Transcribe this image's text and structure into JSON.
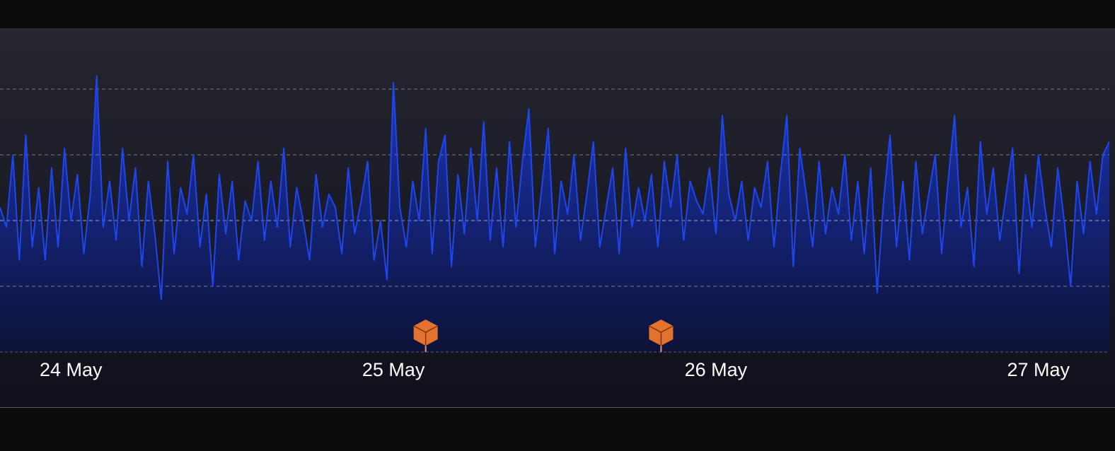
{
  "chart_data": {
    "type": "area",
    "x": [
      23.78,
      23.8,
      23.82,
      23.84,
      23.86,
      23.88,
      23.9,
      23.92,
      23.94,
      23.96,
      23.98,
      24,
      24.02,
      24.04,
      24.06,
      24.08,
      24.1,
      24.12,
      24.14,
      24.16,
      24.18,
      24.2,
      24.22,
      24.24,
      24.26,
      24.28,
      24.3,
      24.32,
      24.34,
      24.36,
      24.38,
      24.4,
      24.42,
      24.44,
      24.46,
      24.48,
      24.5,
      24.52,
      24.54,
      24.56,
      24.58,
      24.6,
      24.62,
      24.64,
      24.66,
      24.68,
      24.7,
      24.72,
      24.74,
      24.76,
      24.78,
      24.8,
      24.82,
      24.84,
      24.86,
      24.88,
      24.9,
      24.92,
      24.94,
      24.96,
      24.98,
      25,
      25.02,
      25.04,
      25.06,
      25.08,
      25.1,
      25.12,
      25.14,
      25.16,
      25.18,
      25.2,
      25.22,
      25.24,
      25.26,
      25.28,
      25.3,
      25.32,
      25.34,
      25.36,
      25.38,
      25.4,
      25.42,
      25.44,
      25.46,
      25.48,
      25.5,
      25.52,
      25.54,
      25.56,
      25.58,
      25.6,
      25.62,
      25.64,
      25.66,
      25.68,
      25.7,
      25.72,
      25.74,
      25.76,
      25.78,
      25.8,
      25.82,
      25.84,
      25.86,
      25.88,
      25.9,
      25.92,
      25.94,
      25.96,
      25.98,
      26,
      26.02,
      26.04,
      26.06,
      26.08,
      26.1,
      26.12,
      26.14,
      26.16,
      26.18,
      26.2,
      26.22,
      26.24,
      26.26,
      26.28,
      26.3,
      26.32,
      26.34,
      26.36,
      26.38,
      26.4,
      26.42,
      26.44,
      26.46,
      26.48,
      26.5,
      26.52,
      26.54,
      26.56,
      26.58,
      26.6,
      26.62,
      26.64,
      26.66,
      26.68,
      26.7,
      26.72,
      26.74,
      26.76,
      26.78,
      26.8,
      26.82,
      26.84,
      26.86,
      26.88,
      26.9,
      26.92,
      26.94,
      26.96,
      26.98,
      27,
      27.02,
      27.04,
      27.06,
      27.08,
      27.1,
      27.12,
      27.14,
      27.16,
      27.18,
      27.2,
      27.22
    ],
    "series": [
      {
        "color": "#1f45f0",
        "values": [
          2.2,
          1.9,
          3.0,
          1.4,
          3.3,
          1.6,
          2.5,
          1.4,
          2.8,
          1.6,
          3.1,
          2.0,
          2.7,
          1.5,
          2.4,
          4.2,
          1.9,
          2.6,
          1.7,
          3.1,
          2.0,
          2.8,
          1.3,
          2.6,
          1.8,
          0.8,
          2.9,
          1.5,
          2.5,
          2.1,
          3.0,
          1.6,
          2.4,
          1.0,
          2.7,
          1.8,
          2.6,
          1.4,
          2.3,
          2.0,
          2.9,
          1.7,
          2.6,
          1.9,
          3.1,
          1.6,
          2.5,
          2.0,
          1.4,
          2.7,
          1.9,
          2.4,
          2.2,
          1.5,
          2.8,
          1.8,
          2.3,
          2.9,
          1.4,
          2.0,
          1.1,
          4.1,
          2.2,
          1.6,
          2.6,
          2.0,
          3.4,
          1.5,
          2.9,
          3.3,
          1.3,
          2.7,
          1.8,
          3.1,
          2.0,
          3.5,
          1.7,
          2.8,
          1.6,
          3.2,
          1.9,
          2.9,
          3.7,
          1.6,
          2.5,
          3.4,
          1.5,
          2.6,
          2.1,
          3.0,
          1.7,
          2.4,
          3.2,
          1.6,
          2.2,
          2.8,
          1.5,
          3.1,
          1.9,
          2.5,
          2.0,
          2.7,
          1.6,
          2.9,
          2.2,
          3.0,
          1.7,
          2.6,
          2.3,
          2.1,
          2.8,
          1.8,
          3.6,
          2.4,
          2.0,
          2.6,
          1.7,
          2.5,
          2.2,
          2.9,
          1.6,
          2.7,
          3.6,
          1.3,
          3.1,
          2.4,
          1.6,
          2.9,
          1.8,
          2.5,
          2.1,
          3.0,
          1.7,
          2.6,
          1.5,
          2.8,
          0.9,
          2.3,
          3.3,
          1.6,
          2.6,
          1.4,
          2.9,
          1.8,
          2.4,
          3.0,
          1.5,
          2.6,
          3.6,
          1.9,
          2.5,
          1.3,
          3.2,
          2.1,
          2.8,
          1.7,
          2.4,
          3.1,
          1.2,
          2.7,
          1.9,
          3.0,
          2.2,
          1.6,
          2.8,
          2.0,
          1.0,
          2.6,
          1.8,
          2.9,
          2.1,
          3.0,
          3.2
        ]
      }
    ],
    "xlim": [
      23.78,
      27.22
    ],
    "xticks": [
      {
        "value": 24,
        "label": "24 May"
      },
      {
        "value": 25,
        "label": "25 May"
      },
      {
        "value": 26,
        "label": "26 May"
      },
      {
        "value": 27,
        "label": "27 May"
      }
    ],
    "ylim": [
      0,
      5
    ],
    "yticks": [
      0,
      1,
      2,
      3,
      4
    ],
    "grid": true,
    "event_x": [
      25.1,
      25.83
    ],
    "event_color": "#e2722e"
  }
}
